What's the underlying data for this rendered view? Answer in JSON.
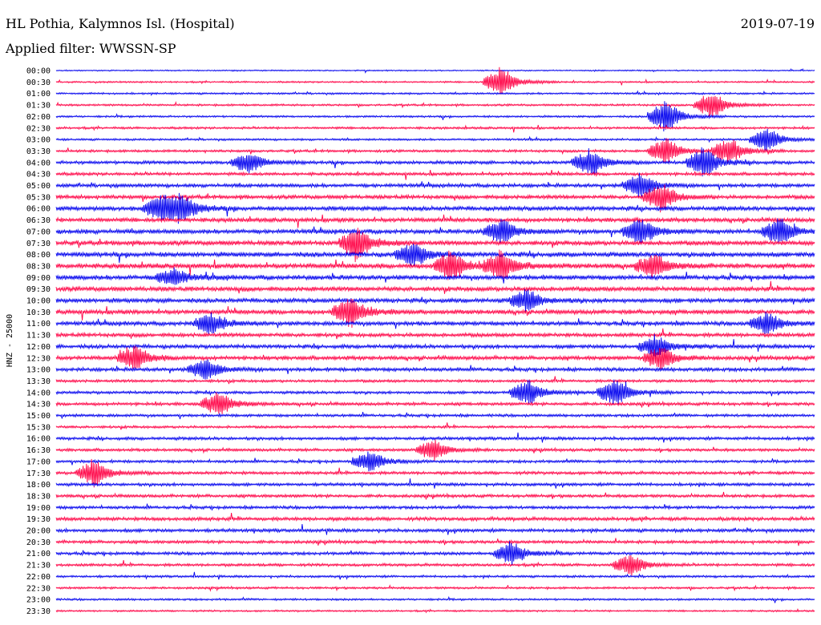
{
  "header": {
    "station": "HL Pothia, Kalymnos Isl. (Hospital)",
    "date": "2019-07-19",
    "filter": "Applied filter: WWSSN-SP"
  },
  "chart_data": {
    "type": "line",
    "channel_label": "HNZ - 25000",
    "colors": {
      "even_rows": "#0000ee",
      "odd_rows": "#ff0044"
    },
    "rows": [
      "00:00",
      "00:30",
      "01:00",
      "01:30",
      "02:00",
      "02:30",
      "03:00",
      "03:30",
      "04:00",
      "04:30",
      "05:00",
      "05:30",
      "06:00",
      "06:30",
      "07:00",
      "07:30",
      "08:00",
      "08:30",
      "09:00",
      "09:30",
      "10:00",
      "10:30",
      "11:00",
      "11:30",
      "12:00",
      "12:30",
      "13:00",
      "13:30",
      "14:00",
      "14:30",
      "15:00",
      "15:30",
      "16:00",
      "16:30",
      "17:00",
      "17:30",
      "18:00",
      "18:30",
      "19:00",
      "19:30",
      "20:00",
      "20:30",
      "21:00",
      "21:30",
      "22:00",
      "22:30",
      "23:00",
      "23:30"
    ],
    "activity": [
      0.1,
      0.18,
      0.22,
      0.25,
      0.25,
      0.3,
      0.25,
      0.35,
      0.5,
      0.45,
      0.55,
      0.6,
      0.7,
      0.65,
      0.7,
      0.75,
      0.8,
      0.8,
      0.75,
      0.75,
      0.7,
      0.7,
      0.65,
      0.6,
      0.6,
      0.6,
      0.55,
      0.4,
      0.4,
      0.45,
      0.4,
      0.35,
      0.45,
      0.4,
      0.4,
      0.45,
      0.45,
      0.45,
      0.45,
      0.55,
      0.5,
      0.45,
      0.45,
      0.4,
      0.3,
      0.28,
      0.25,
      0.2
    ],
    "events": [
      {
        "row": 1,
        "minute": 17.5,
        "amplitude": 1.0
      },
      {
        "row": 3,
        "minute": 25.8,
        "amplitude": 0.9
      },
      {
        "row": 4,
        "minute": 24.0,
        "amplitude": 1.1
      },
      {
        "row": 6,
        "minute": 28.0,
        "amplitude": 0.8
      },
      {
        "row": 7,
        "minute": 24.0,
        "amplitude": 0.9
      },
      {
        "row": 7,
        "minute": 26.5,
        "amplitude": 0.9
      },
      {
        "row": 8,
        "minute": 7.5,
        "amplitude": 0.7
      },
      {
        "row": 8,
        "minute": 21.0,
        "amplitude": 0.9
      },
      {
        "row": 8,
        "minute": 25.5,
        "amplitude": 1.0
      },
      {
        "row": 10,
        "minute": 23.0,
        "amplitude": 0.8
      },
      {
        "row": 11,
        "minute": 23.8,
        "amplitude": 0.9
      },
      {
        "row": 12,
        "minute": 4.0,
        "amplitude": 0.8
      },
      {
        "row": 12,
        "minute": 4.8,
        "amplitude": 0.9
      },
      {
        "row": 14,
        "minute": 17.5,
        "amplitude": 0.8
      },
      {
        "row": 14,
        "minute": 23.0,
        "amplitude": 0.9
      },
      {
        "row": 14,
        "minute": 28.5,
        "amplitude": 0.9
      },
      {
        "row": 15,
        "minute": 11.8,
        "amplitude": 1.1
      },
      {
        "row": 16,
        "minute": 14.0,
        "amplitude": 0.8
      },
      {
        "row": 17,
        "minute": 15.5,
        "amplitude": 1.0
      },
      {
        "row": 17,
        "minute": 17.5,
        "amplitude": 0.9
      },
      {
        "row": 17,
        "minute": 23.5,
        "amplitude": 0.8
      },
      {
        "row": 18,
        "minute": 4.5,
        "amplitude": 0.6
      },
      {
        "row": 20,
        "minute": 18.5,
        "amplitude": 0.7
      },
      {
        "row": 21,
        "minute": 11.5,
        "amplitude": 1.0
      },
      {
        "row": 22,
        "minute": 6.0,
        "amplitude": 0.7
      },
      {
        "row": 22,
        "minute": 28.0,
        "amplitude": 0.7
      },
      {
        "row": 24,
        "minute": 23.6,
        "amplitude": 0.7
      },
      {
        "row": 25,
        "minute": 3.0,
        "amplitude": 0.8
      },
      {
        "row": 25,
        "minute": 23.8,
        "amplitude": 0.8
      },
      {
        "row": 26,
        "minute": 5.8,
        "amplitude": 0.7
      },
      {
        "row": 28,
        "minute": 18.5,
        "amplitude": 0.9
      },
      {
        "row": 28,
        "minute": 22.0,
        "amplitude": 0.9
      },
      {
        "row": 29,
        "minute": 6.3,
        "amplitude": 0.8
      },
      {
        "row": 33,
        "minute": 14.8,
        "amplitude": 0.7
      },
      {
        "row": 34,
        "minute": 12.3,
        "amplitude": 0.7
      },
      {
        "row": 35,
        "minute": 1.4,
        "amplitude": 0.9
      },
      {
        "row": 42,
        "minute": 17.9,
        "amplitude": 0.8
      },
      {
        "row": 43,
        "minute": 22.6,
        "amplitude": 0.7
      }
    ]
  }
}
